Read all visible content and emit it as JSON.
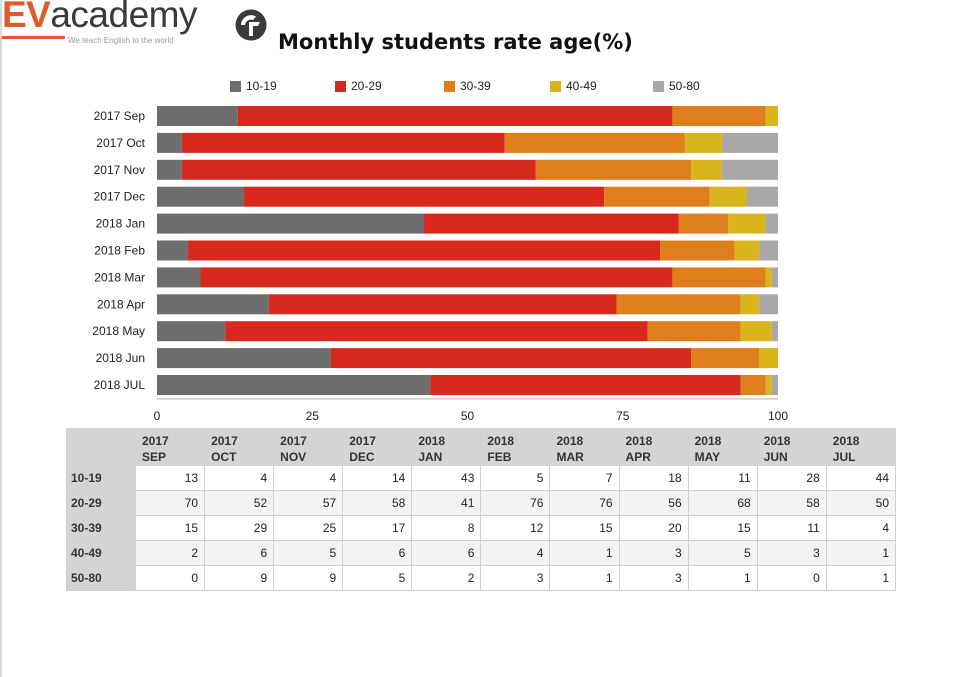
{
  "logo": {
    "ev": "EV",
    "academy": "academy",
    "tagline": "We teach English to the world"
  },
  "chart_data": {
    "type": "bar",
    "orientation": "horizontal",
    "stacked": true,
    "title": "Monthly students rate age(%)",
    "categories": [
      "2017 Sep",
      "2017 Oct",
      "2017 Nov",
      "2017 Dec",
      "2018 Jan",
      "2018 Feb",
      "2018 Mar",
      "2018 Apr",
      "2018 May",
      "2018 Jun",
      "2018 JUL"
    ],
    "series": [
      {
        "name": "10-19",
        "color": "#6d6d6d",
        "values": [
          13,
          4,
          4,
          14,
          43,
          5,
          7,
          18,
          11,
          28,
          44
        ]
      },
      {
        "name": "20-29",
        "color": "#d6281b",
        "values": [
          70,
          52,
          57,
          58,
          41,
          76,
          76,
          56,
          68,
          58,
          50
        ]
      },
      {
        "name": "30-39",
        "color": "#df7f1c",
        "values": [
          15,
          29,
          25,
          17,
          8,
          12,
          15,
          20,
          15,
          11,
          4
        ]
      },
      {
        "name": "40-49",
        "color": "#d9b41c",
        "values": [
          2,
          6,
          5,
          6,
          6,
          4,
          1,
          3,
          5,
          3,
          1
        ]
      },
      {
        "name": "50-80",
        "color": "#a8a8a8",
        "values": [
          0,
          9,
          9,
          5,
          2,
          3,
          1,
          3,
          1,
          0,
          1
        ]
      }
    ],
    "xlim": [
      0,
      100
    ],
    "xticks": [
      "0",
      "25",
      "50",
      "75",
      "100"
    ],
    "legend_position": "top",
    "grid": false
  },
  "table": {
    "columns": [
      {
        "year": "2017",
        "month": "SEP"
      },
      {
        "year": "2017",
        "month": "OCT"
      },
      {
        "year": "2017",
        "month": "NOV"
      },
      {
        "year": "2017",
        "month": "DEC"
      },
      {
        "year": "2018",
        "month": "JAN"
      },
      {
        "year": "2018",
        "month": "FEB"
      },
      {
        "year": "2018",
        "month": "MAR"
      },
      {
        "year": "2018",
        "month": "APR"
      },
      {
        "year": "2018",
        "month": "MAY"
      },
      {
        "year": "2018",
        "month": "JUN"
      },
      {
        "year": "2018",
        "month": "JUL"
      }
    ],
    "rows": [
      {
        "label": "10-19",
        "values": [
          "13",
          "4",
          "4",
          "14",
          "43",
          "5",
          "7",
          "18",
          "11",
          "28",
          "44"
        ]
      },
      {
        "label": "20-29",
        "values": [
          "70",
          "52",
          "57",
          "58",
          "41",
          "76",
          "76",
          "56",
          "68",
          "58",
          "50"
        ]
      },
      {
        "label": "30-39",
        "values": [
          "15",
          "29",
          "25",
          "17",
          "8",
          "12",
          "15",
          "20",
          "15",
          "11",
          "4"
        ]
      },
      {
        "label": "40-49",
        "values": [
          "2",
          "6",
          "5",
          "6",
          "6",
          "4",
          "1",
          "3",
          "5",
          "3",
          "1"
        ]
      },
      {
        "label": "50-80",
        "values": [
          "0",
          "9",
          "9",
          "5",
          "2",
          "3",
          "1",
          "3",
          "1",
          "0",
          "1"
        ]
      }
    ]
  }
}
